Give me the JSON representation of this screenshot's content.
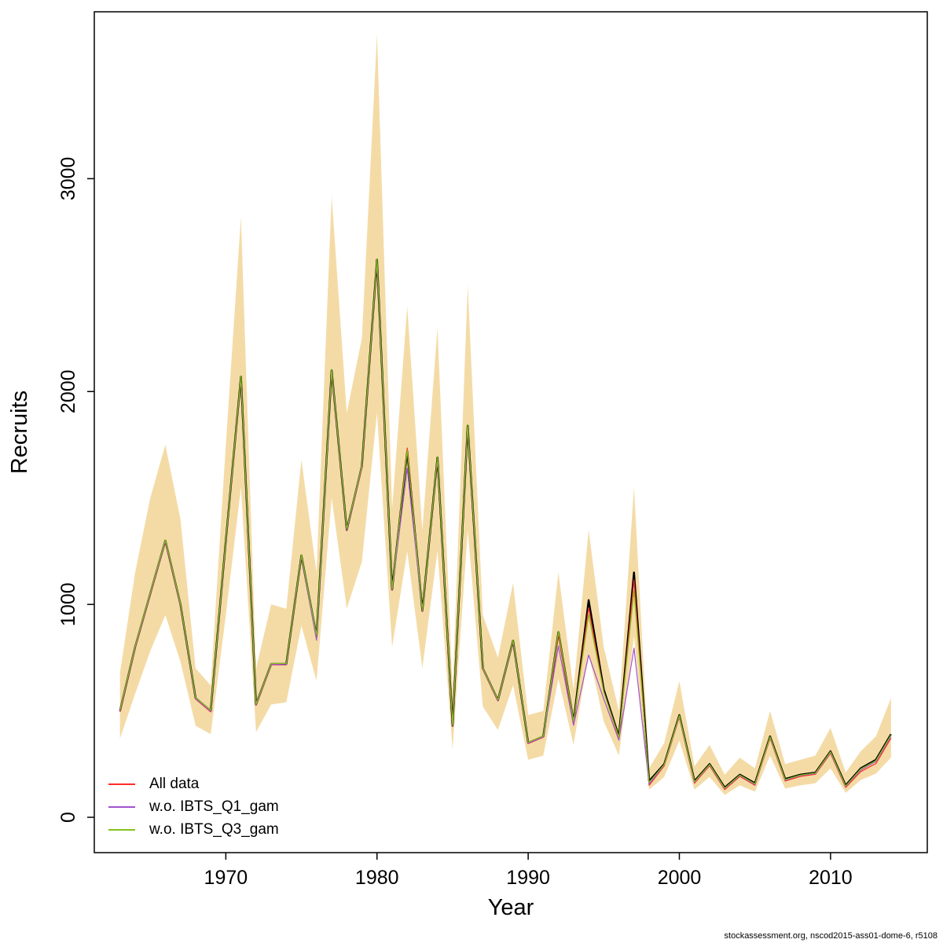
{
  "page": {
    "footer": "stockassessment.org, nscod2015-ass01-dome-6, r5108"
  },
  "chart_data": {
    "type": "line",
    "title": "",
    "xlabel": "Year",
    "ylabel": "Recruits",
    "xlim": [
      1961.3,
      2016.4
    ],
    "ylim": [
      -166,
      3784
    ],
    "xticks": [
      1970,
      1980,
      1990,
      2000,
      2010
    ],
    "yticks": [
      0,
      1000,
      2000,
      3000
    ],
    "grid": false,
    "legend_position": "bottom-left",
    "x": [
      1963,
      1964,
      1965,
      1966,
      1967,
      1968,
      1969,
      1970,
      1971,
      1972,
      1973,
      1974,
      1975,
      1976,
      1977,
      1978,
      1979,
      1980,
      1981,
      1982,
      1983,
      1984,
      1985,
      1986,
      1987,
      1988,
      1989,
      1990,
      1991,
      1992,
      1993,
      1994,
      1995,
      1996,
      1997,
      1998,
      1999,
      2000,
      2001,
      2002,
      2003,
      2004,
      2005,
      2006,
      2007,
      2008,
      2009,
      2010,
      2011,
      2012,
      2013,
      2014
    ],
    "band": {
      "name": "confidence-band",
      "color": "#f4dba6",
      "upper": [
        680,
        1150,
        1500,
        1750,
        1400,
        700,
        620,
        1750,
        2820,
        700,
        1000,
        980,
        1680,
        1150,
        2920,
        1900,
        2250,
        3680,
        1450,
        2400,
        1350,
        2300,
        600,
        2500,
        950,
        750,
        1100,
        480,
        500,
        1150,
        600,
        1350,
        800,
        500,
        1550,
        230,
        350,
        640,
        240,
        340,
        200,
        280,
        230,
        500,
        250,
        270,
        290,
        420,
        210,
        310,
        380,
        560
      ],
      "lower": [
        370,
        580,
        780,
        950,
        730,
        430,
        390,
        950,
        1550,
        400,
        530,
        540,
        900,
        640,
        1500,
        980,
        1200,
        1900,
        800,
        1250,
        700,
        1250,
        320,
        1350,
        520,
        410,
        620,
        270,
        290,
        650,
        340,
        770,
        450,
        290,
        850,
        130,
        190,
        360,
        130,
        190,
        105,
        150,
        120,
        290,
        135,
        150,
        160,
        230,
        115,
        175,
        205,
        280
      ]
    },
    "base_line": {
      "name": "point-estimate",
      "color": "#000000",
      "width": 2.4,
      "values": [
        500,
        800,
        1050,
        1300,
        1000,
        560,
        500,
        1300,
        2070,
        530,
        720,
        720,
        1230,
        850,
        2100,
        1350,
        1650,
        2620,
        1070,
        1720,
        970,
        1690,
        430,
        1840,
        700,
        550,
        830,
        350,
        380,
        870,
        450,
        1020,
        600,
        380,
        1150,
        170,
        250,
        480,
        170,
        250,
        140,
        200,
        160,
        380,
        180,
        200,
        210,
        310,
        150,
        230,
        270,
        390
      ]
    },
    "series": [
      {
        "name": "All data",
        "color": "#ff2a2a",
        "width": 1.2,
        "values": [
          495,
          795,
          1045,
          1295,
          995,
          555,
          495,
          1295,
          2062,
          526,
          716,
          716,
          1226,
          846,
          2092,
          1346,
          1642,
          2612,
          1066,
          1735,
          966,
          1686,
          426,
          1836,
          696,
          546,
          826,
          346,
          376,
          862,
          444,
          985,
          590,
          370,
          1115,
          150,
          242,
          472,
          160,
          242,
          130,
          192,
          150,
          372,
          170,
          192,
          202,
          300,
          140,
          215,
          252,
          372
        ]
      },
      {
        "name": "w.o. IBTS_Q1_gam",
        "color": "#a352cc",
        "width": 1.2,
        "values": [
          500,
          798,
          1048,
          1298,
          998,
          557,
          498,
          1297,
          2066,
          528,
          718,
          717,
          1228,
          832,
          2096,
          1348,
          1646,
          2616,
          1068,
          1640,
          968,
          1688,
          428,
          1838,
          698,
          548,
          828,
          348,
          378,
          805,
          432,
          762,
          556,
          362,
          795,
          156,
          246,
          476,
          164,
          246,
          134,
          196,
          154,
          376,
          174,
          196,
          206,
          304,
          144,
          222,
          262,
          380
        ]
      },
      {
        "name": "w.o. IBTS_Q3_gam",
        "color": "#84c318",
        "width": 1.2,
        "values": [
          504,
          804,
          1054,
          1304,
          1004,
          562,
          503,
          1303,
          2074,
          532,
          722,
          722,
          1234,
          854,
          2104,
          1354,
          1654,
          2624,
          1072,
          1724,
          972,
          1692,
          432,
          1844,
          702,
          552,
          832,
          352,
          382,
          874,
          452,
          952,
          588,
          376,
          1065,
          164,
          248,
          478,
          167,
          248,
          137,
          198,
          157,
          378,
          177,
          198,
          208,
          308,
          147,
          227,
          266,
          386
        ]
      }
    ]
  }
}
